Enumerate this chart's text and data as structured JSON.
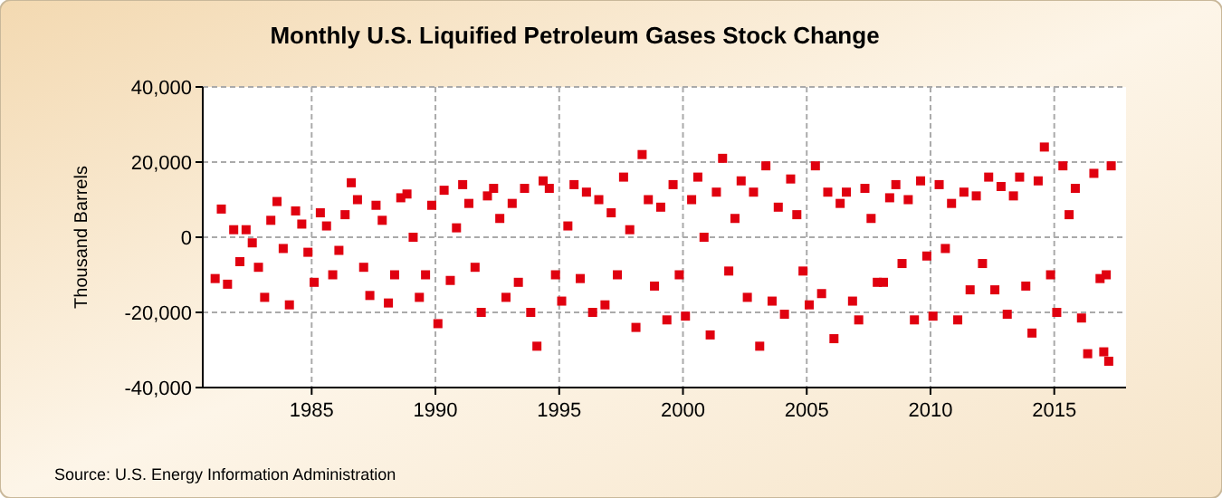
{
  "chart_data": {
    "type": "scatter",
    "title": "Monthly U.S. Liquified Petroleum Gases Stock Change",
    "ylabel": "Thousand Barrels",
    "annotations": [
      "Source: U.S. Energy Information Administration"
    ],
    "x": [
      1981.1,
      1981.35,
      1981.6,
      1981.85,
      1982.1,
      1982.35,
      1982.6,
      1982.85,
      1983.1,
      1983.35,
      1983.6,
      1983.85,
      1984.1,
      1984.35,
      1984.6,
      1984.85,
      1985.1,
      1985.35,
      1985.6,
      1985.85,
      1986.1,
      1986.35,
      1986.6,
      1986.85,
      1987.1,
      1987.35,
      1987.6,
      1987.85,
      1988.1,
      1988.35,
      1988.6,
      1988.85,
      1989.1,
      1989.35,
      1989.6,
      1989.85,
      1990.1,
      1990.35,
      1990.6,
      1990.85,
      1991.1,
      1991.35,
      1991.6,
      1991.85,
      1992.1,
      1992.35,
      1992.6,
      1992.85,
      1993.1,
      1993.35,
      1993.6,
      1993.85,
      1994.1,
      1994.35,
      1994.6,
      1994.85,
      1995.1,
      1995.35,
      1995.6,
      1995.85,
      1996.1,
      1996.35,
      1996.6,
      1996.85,
      1997.1,
      1997.35,
      1997.6,
      1997.85,
      1998.1,
      1998.35,
      1998.6,
      1998.85,
      1999.1,
      1999.35,
      1999.6,
      1999.85,
      2000.1,
      2000.35,
      2000.6,
      2000.85,
      2001.1,
      2001.35,
      2001.6,
      2001.85,
      2002.1,
      2002.35,
      2002.6,
      2002.85,
      2003.1,
      2003.35,
      2003.6,
      2003.85,
      2004.1,
      2004.35,
      2004.6,
      2004.85,
      2005.1,
      2005.35,
      2005.6,
      2005.85,
      2006.1,
      2006.35,
      2006.6,
      2006.85,
      2007.1,
      2007.35,
      2007.6,
      2007.85,
      2008.1,
      2008.35,
      2008.6,
      2008.85,
      2009.1,
      2009.35,
      2009.6,
      2009.85,
      2010.1,
      2010.35,
      2010.6,
      2010.85,
      2011.1,
      2011.35,
      2011.6,
      2011.85,
      2012.1,
      2012.35,
      2012.6,
      2012.85,
      2013.1,
      2013.35,
      2013.6,
      2013.85,
      2014.1,
      2014.35,
      2014.6,
      2014.85,
      2015.1,
      2015.35,
      2015.6,
      2015.85,
      2016.1,
      2016.35,
      2016.6,
      2016.85,
      2017.0,
      2017.1,
      2017.2,
      2017.3
    ],
    "series": [
      {
        "color": "#e0000f",
        "values": [
          -11000,
          7500,
          -12500,
          2000,
          -6500,
          2000,
          -1500,
          -8000,
          -16000,
          4500,
          9500,
          -3000,
          -18000,
          7000,
          3500,
          -4000,
          -12000,
          6500,
          3000,
          -10000,
          -3500,
          6000,
          14500,
          10000,
          -8000,
          -15500,
          8500,
          4500,
          -17500,
          -10000,
          10500,
          11500,
          0,
          -16000,
          -10000,
          8500,
          -23000,
          12500,
          -11500,
          2500,
          14000,
          9000,
          -8000,
          -20000,
          11000,
          13000,
          5000,
          -16000,
          9000,
          -12000,
          13000,
          -20000,
          -29000,
          15000,
          13000,
          -10000,
          -17000,
          3000,
          14000,
          -11000,
          12000,
          -20000,
          10000,
          -18000,
          6500,
          -10000,
          16000,
          2000,
          -24000,
          22000,
          10000,
          -13000,
          8000,
          -22000,
          14000,
          -10000,
          -21000,
          10000,
          16000,
          0,
          -26000,
          12000,
          21000,
          -9000,
          5000,
          15000,
          -16000,
          12000,
          -29000,
          19000,
          -17000,
          8000,
          -20500,
          15500,
          6000,
          -9000,
          -18000,
          19000,
          -15000,
          12000,
          -27000,
          9000,
          12000,
          -17000,
          -22000,
          13000,
          5000,
          -12000,
          -12000,
          10500,
          14000,
          -7000,
          10000,
          -22000,
          15000,
          -5000,
          -21000,
          14000,
          -3000,
          9000,
          -22000,
          12000,
          -14000,
          11000,
          -7000,
          16000,
          -14000,
          13500,
          -20500,
          11000,
          16000,
          -13000,
          -25500,
          15000,
          24000,
          -10000,
          -20000,
          19000,
          6000,
          13000,
          -21500,
          -31000,
          17000,
          -11000,
          -30500,
          -10000,
          -33000,
          19000
        ]
      }
    ],
    "xlim": [
      1980.6,
      2017.9
    ],
    "xticks": [
      1985,
      1990,
      1995,
      2000,
      2005,
      2010,
      2015
    ],
    "ylim": [
      -40000,
      40000
    ],
    "yticks": [
      {
        "value": -40000,
        "label": "-40,000"
      },
      {
        "value": -20000,
        "label": "-20,000"
      },
      0,
      {
        "value": 20000,
        "label": "20,000"
      },
      {
        "value": 40000,
        "label": "40,000"
      }
    ],
    "grid": true,
    "marker": "square"
  }
}
